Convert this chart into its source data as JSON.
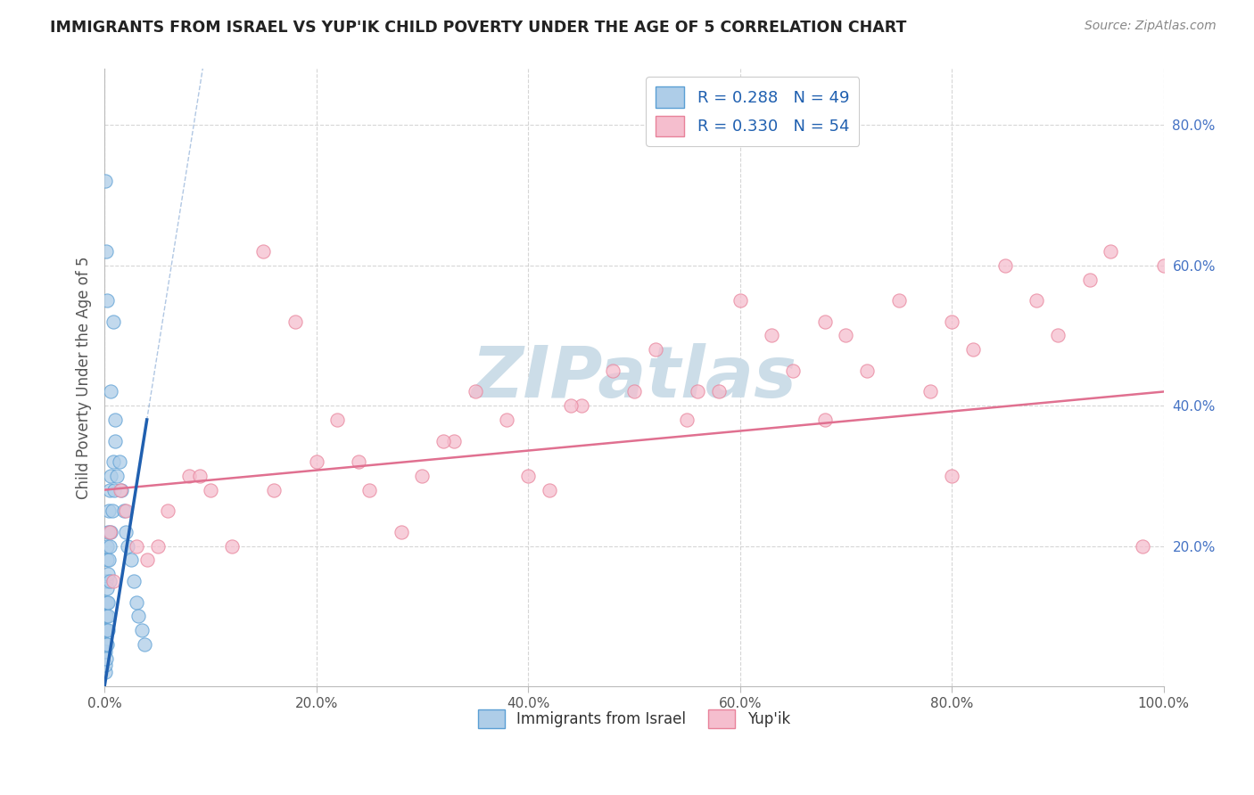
{
  "title": "IMMIGRANTS FROM ISRAEL VS YUP'IK CHILD POVERTY UNDER THE AGE OF 5 CORRELATION CHART",
  "source": "Source: ZipAtlas.com",
  "ylabel": "Child Poverty Under the Age of 5",
  "xlim": [
    0,
    100
  ],
  "ylim": [
    0,
    88
  ],
  "xtick_vals": [
    0,
    20,
    40,
    60,
    80,
    100
  ],
  "xtick_labels": [
    "0.0%",
    "20.0%",
    "40.0%",
    "60.0%",
    "80.0%",
    "100.0%"
  ],
  "ytick_vals": [
    20,
    40,
    60,
    80
  ],
  "ytick_labels": [
    "20.0%",
    "40.0%",
    "60.0%",
    "80.0%"
  ],
  "legend_corr_labels": [
    "R = 0.288   N = 49",
    "R = 0.330   N = 54"
  ],
  "legend_bottom_labels": [
    "Immigrants from Israel",
    "Yup'ik"
  ],
  "israel_face": "#aecde8",
  "israel_edge": "#5b9fd4",
  "yupik_face": "#f5bece",
  "yupik_edge": "#e8829a",
  "trend_israel_color": "#2060b0",
  "trend_yupik_color": "#e07090",
  "background_color": "#ffffff",
  "grid_color": "#cccccc",
  "watermark": "ZIPatlas",
  "watermark_color": "#ccdde8",
  "legend_face": "#aecde8",
  "legend_pink": "#f5bece",
  "israel_x": [
    0.05,
    0.05,
    0.08,
    0.1,
    0.1,
    0.12,
    0.15,
    0.15,
    0.15,
    0.18,
    0.2,
    0.2,
    0.22,
    0.25,
    0.25,
    0.28,
    0.3,
    0.3,
    0.32,
    0.35,
    0.4,
    0.4,
    0.45,
    0.5,
    0.5,
    0.55,
    0.6,
    0.7,
    0.8,
    0.9,
    1.0,
    1.0,
    1.2,
    1.4,
    1.6,
    1.8,
    2.0,
    2.2,
    2.5,
    2.8,
    3.0,
    3.2,
    3.5,
    3.8,
    0.6,
    0.8,
    0.1,
    0.15,
    0.2
  ],
  "israel_y": [
    2,
    5,
    3,
    8,
    12,
    6,
    10,
    15,
    4,
    8,
    12,
    18,
    6,
    14,
    20,
    10,
    16,
    22,
    8,
    12,
    18,
    25,
    15,
    20,
    28,
    22,
    30,
    25,
    32,
    28,
    35,
    38,
    30,
    32,
    28,
    25,
    22,
    20,
    18,
    15,
    12,
    10,
    8,
    6,
    42,
    52,
    72,
    62,
    55
  ],
  "yupik_x": [
    0.5,
    1.5,
    3.0,
    4.0,
    6.0,
    8.0,
    10.0,
    12.0,
    15.0,
    18.0,
    20.0,
    22.0,
    25.0,
    28.0,
    30.0,
    33.0,
    35.0,
    38.0,
    40.0,
    42.0,
    45.0,
    48.0,
    50.0,
    52.0,
    55.0,
    58.0,
    60.0,
    63.0,
    65.0,
    68.0,
    70.0,
    72.0,
    75.0,
    78.0,
    80.0,
    82.0,
    85.0,
    88.0,
    90.0,
    93.0,
    95.0,
    98.0,
    100.0,
    0.8,
    2.0,
    5.0,
    9.0,
    16.0,
    24.0,
    32.0,
    44.0,
    56.0,
    68.0,
    80.0
  ],
  "yupik_y": [
    22,
    28,
    20,
    18,
    25,
    30,
    28,
    20,
    62,
    52,
    32,
    38,
    28,
    22,
    30,
    35,
    42,
    38,
    30,
    28,
    40,
    45,
    42,
    48,
    38,
    42,
    55,
    50,
    45,
    38,
    50,
    45,
    55,
    42,
    52,
    48,
    60,
    55,
    50,
    58,
    62,
    20,
    60,
    15,
    25,
    20,
    30,
    28,
    32,
    35,
    40,
    42,
    52,
    30
  ],
  "israel_trend_x0": 0,
  "israel_trend_y0": 0,
  "israel_trend_x1": 4.0,
  "israel_trend_y1": 38,
  "yupik_trend_x0": 0,
  "yupik_trend_y0": 28,
  "yupik_trend_x1": 100,
  "yupik_trend_y1": 42
}
